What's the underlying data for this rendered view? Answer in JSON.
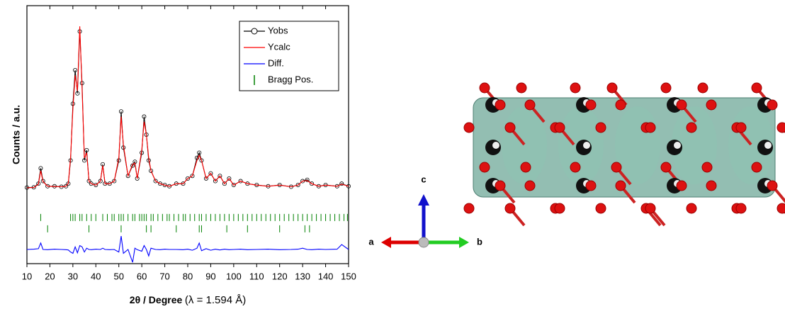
{
  "chart_data": {
    "type": "line",
    "xlabel": "2θ / Degree",
    "xlabel_note": "(λ = 1.594 Å)",
    "ylabel": "Counts / a.u.",
    "xlim": [
      10,
      150
    ],
    "xticks": [
      10,
      20,
      30,
      40,
      50,
      60,
      70,
      80,
      90,
      100,
      110,
      120,
      130,
      140,
      150
    ],
    "ylim": [
      0,
      100
    ],
    "x": [
      10,
      13,
      15,
      16,
      17,
      19,
      22,
      25,
      27,
      28,
      29,
      30,
      31,
      32,
      33,
      34,
      35,
      36,
      37,
      38,
      40,
      42,
      43,
      44,
      46,
      48,
      50,
      51,
      52,
      54,
      56,
      57,
      58,
      60,
      61,
      62,
      63,
      64,
      66,
      68,
      70,
      72,
      75,
      78,
      80,
      82,
      84,
      85,
      86,
      88,
      90,
      92,
      94,
      96,
      98,
      100,
      103,
      106,
      110,
      115,
      120,
      125,
      128,
      130,
      132,
      134,
      137,
      140,
      145,
      147,
      150
    ],
    "series": [
      {
        "name": "Yobs",
        "color": "#000000",
        "values": [
          29.5,
          29.6,
          31,
          37,
          32,
          30,
          30,
          29.8,
          30,
          31,
          40,
          62,
          75,
          66,
          90,
          70,
          40,
          44,
          32,
          31,
          30.5,
          32,
          38.5,
          31,
          31,
          32,
          40,
          59,
          45,
          34,
          38,
          39.5,
          33,
          43,
          57,
          50,
          40,
          36,
          32,
          31,
          30.5,
          30,
          31,
          31,
          33,
          34,
          41,
          43,
          40,
          33,
          35,
          32,
          34,
          31,
          33,
          30.5,
          32,
          31,
          30.5,
          30,
          30.5,
          29.8,
          30.5,
          32,
          32.5,
          31,
          30,
          30.5,
          30,
          31,
          30
        ]
      },
      {
        "name": "Ycalc",
        "color": "#ff0000",
        "values": [
          29.4,
          29.5,
          30.8,
          36,
          31.8,
          30,
          29.9,
          29.8,
          30,
          31.2,
          41,
          60,
          73,
          67,
          92,
          68,
          41,
          43,
          32,
          31,
          30.4,
          32,
          38,
          31,
          31,
          32,
          41,
          57,
          46,
          34,
          38.5,
          39,
          33,
          44,
          55,
          50,
          41,
          36,
          32,
          31,
          30.4,
          30,
          31,
          31,
          33,
          34,
          40,
          42,
          40,
          33,
          35,
          32,
          34,
          31,
          33,
          30.4,
          32,
          31,
          30.4,
          30,
          30.4,
          29.8,
          30.4,
          32,
          32.2,
          31,
          30,
          30.4,
          30,
          30.8,
          30
        ]
      },
      {
        "name": "Diff.",
        "color": "#0000ff",
        "values": [
          5.5,
          5.6,
          5.8,
          8,
          5.5,
          5.4,
          5.6,
          5.5,
          5.4,
          5.3,
          4.5,
          4,
          6.5,
          4.2,
          7,
          6.5,
          4.5,
          6,
          5.5,
          5.4,
          5.6,
          5.5,
          6,
          5.5,
          5.4,
          5.5,
          4.5,
          10.7,
          4,
          5.5,
          0.5,
          6,
          5.4,
          4.8,
          7,
          5.5,
          3,
          6,
          5.5,
          5.4,
          5.6,
          5.5,
          5.5,
          5.4,
          5.6,
          5.2,
          6,
          8,
          5,
          5.8,
          5.2,
          5.6,
          5.3,
          5.6,
          5.4,
          5.5,
          5.6,
          5.4,
          5.5,
          5.6,
          5.4,
          5.5,
          5.6,
          6,
          5.5,
          5.4,
          5.6,
          5.5,
          5.6,
          7.4,
          5.5
        ]
      }
    ],
    "bragg": {
      "name": "Bragg Pos.",
      "color": "#008000",
      "positions": [
        [
          16,
          29,
          30,
          31,
          33,
          34,
          36,
          38,
          40,
          43,
          45,
          47,
          48,
          50,
          51,
          52,
          54,
          56,
          57,
          59,
          60,
          61,
          62,
          64,
          65,
          67,
          69,
          71,
          72,
          74,
          76,
          78,
          79,
          81,
          83,
          85,
          86,
          88,
          90,
          92,
          94,
          96,
          98,
          100,
          102,
          104,
          106,
          108,
          110,
          112,
          114,
          116,
          118,
          120,
          122,
          124,
          126,
          128,
          130,
          132,
          134,
          136,
          138,
          140,
          142,
          144,
          146,
          148,
          149.5
        ],
        [
          19,
          37,
          51,
          62,
          64,
          75,
          85,
          86,
          97,
          106,
          120,
          131,
          133
        ]
      ]
    }
  },
  "structure": {
    "axis_labels": [
      "a",
      "b",
      "c"
    ]
  }
}
